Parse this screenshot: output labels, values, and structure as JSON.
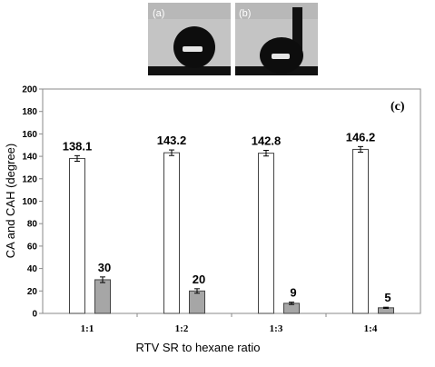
{
  "photos": [
    {
      "label": "(a)"
    },
    {
      "label": "(b)"
    }
  ],
  "chart_data": {
    "type": "bar",
    "panel_label": "(c)",
    "categories": [
      "1:1",
      "1:2",
      "1:3",
      "1:4"
    ],
    "series": [
      {
        "values": [
          138.1,
          143.2,
          142.8,
          146.2
        ],
        "errors": [
          2.5,
          2.5,
          2.5,
          2.5
        ],
        "color": "#ffffff"
      },
      {
        "values": [
          30,
          20,
          9,
          5
        ],
        "errors": [
          2.5,
          2,
          1,
          0.5
        ],
        "color": "#a6a6a6"
      }
    ],
    "data_labels": [
      [
        "138.1",
        "143.2",
        "142.8",
        "146.2"
      ],
      [
        "30",
        "20",
        "9",
        "5"
      ]
    ],
    "xlabel": "RTV SR to hexane ratio",
    "ylabel": "CA and CAH (degree)",
    "ylim": [
      0,
      200
    ],
    "yticks": [
      0,
      20,
      40,
      60,
      80,
      100,
      120,
      140,
      160,
      180,
      200
    ],
    "grid": false,
    "legend": "none"
  }
}
